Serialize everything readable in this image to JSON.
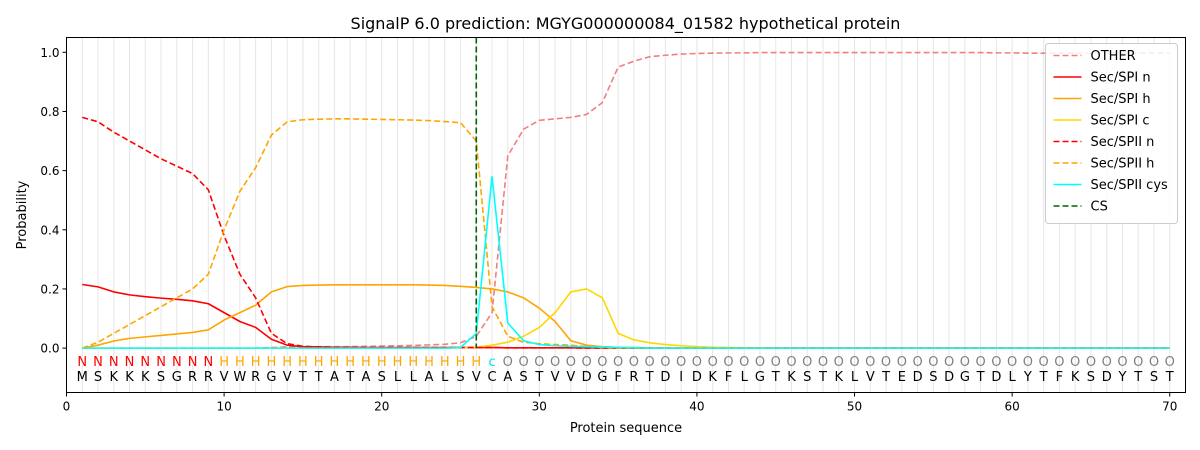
{
  "chart_data": {
    "type": "line",
    "title": "SignalP 6.0 prediction: MGYG000000084_01582 hypothetical protein",
    "xlabel": "Protein sequence",
    "ylabel": "Probability",
    "xlim": [
      0,
      71
    ],
    "ylim": [
      -0.15,
      1.05
    ],
    "xticks": [
      0,
      10,
      20,
      30,
      40,
      50,
      60,
      70
    ],
    "yticks": [
      0.0,
      0.2,
      0.4,
      0.6,
      0.8,
      1.0
    ],
    "vertical_gridlines": "at every residue position (light gray)",
    "legend_position": "top-right",
    "sequence": [
      "M",
      "S",
      "K",
      "K",
      "K",
      "S",
      "G",
      "R",
      "R",
      "V",
      "W",
      "R",
      "G",
      "V",
      "T",
      "T",
      "A",
      "T",
      "A",
      "S",
      "L",
      "L",
      "A",
      "L",
      "S",
      "V",
      "C",
      "A",
      "S",
      "T",
      "V",
      "V",
      "D",
      "G",
      "F",
      "R",
      "T",
      "D",
      "I",
      "D",
      "K",
      "F",
      "L",
      "G",
      "T",
      "K",
      "S",
      "T",
      "K",
      "L",
      "V",
      "T",
      "E",
      "D",
      "S",
      "D",
      "G",
      "T",
      "D",
      "L",
      "Y",
      "T",
      "F",
      "K",
      "S",
      "D",
      "Y",
      "T",
      "S",
      "T"
    ],
    "region_labels": [
      "N",
      "N",
      "N",
      "N",
      "N",
      "N",
      "N",
      "N",
      "N",
      "H",
      "H",
      "H",
      "H",
      "H",
      "H",
      "H",
      "H",
      "H",
      "H",
      "H",
      "H",
      "H",
      "H",
      "H",
      "H",
      "H",
      "c",
      "O",
      "O",
      "O",
      "O",
      "O",
      "O",
      "O",
      "O",
      "O",
      "O",
      "O",
      "O",
      "O",
      "O",
      "O",
      "O",
      "O",
      "O",
      "O",
      "O",
      "O",
      "O",
      "O",
      "O",
      "O",
      "O",
      "O",
      "O",
      "O",
      "O",
      "O",
      "O",
      "O",
      "O",
      "O",
      "O",
      "O",
      "O",
      "O",
      "O",
      "O",
      "O",
      "O"
    ],
    "region_colors": {
      "N": "#ff0000",
      "H": "#ffa500",
      "c": "#00e5e5",
      "O": "#808080"
    },
    "cleavage_site": 26,
    "series": [
      {
        "name": "OTHER",
        "color": "#f08080",
        "dash": "dashed",
        "values": [
          0.0,
          0.0,
          0.0,
          0.0,
          0.0,
          0.0,
          0.0,
          0.0,
          0.0,
          0.0,
          0.0,
          0.0,
          0.002,
          0.004,
          0.005,
          0.005,
          0.005,
          0.005,
          0.006,
          0.007,
          0.008,
          0.009,
          0.011,
          0.013,
          0.018,
          0.04,
          0.12,
          0.65,
          0.74,
          0.77,
          0.775,
          0.78,
          0.79,
          0.83,
          0.95,
          0.97,
          0.985,
          0.99,
          0.994,
          0.996,
          0.997,
          0.998,
          0.998,
          0.999,
          0.999,
          0.999,
          0.999,
          0.999,
          0.999,
          0.999,
          0.999,
          0.999,
          0.999,
          0.999,
          0.999,
          0.999,
          0.999,
          0.999,
          0.998,
          0.998,
          0.997,
          0.997,
          0.997,
          0.997,
          0.997,
          0.997,
          0.997,
          0.997,
          0.997,
          0.997
        ]
      },
      {
        "name": "Sec/SPI n",
        "color": "#ff0000",
        "dash": "solid",
        "values": [
          0.215,
          0.207,
          0.19,
          0.18,
          0.174,
          0.169,
          0.165,
          0.16,
          0.15,
          0.12,
          0.09,
          0.07,
          0.03,
          0.01,
          0.005,
          0.004,
          0.003,
          0.003,
          0.002,
          0.002,
          0.002,
          0.002,
          0.002,
          0.002,
          0.002,
          0.002,
          0.002,
          0.001,
          0.001,
          0.001,
          0.001,
          0.001,
          0.001,
          0.001,
          0.0,
          0.0,
          0.0,
          0.0,
          0.0,
          0.0,
          0.0,
          0.0,
          0.0,
          0.0,
          0.0,
          0.0,
          0.0,
          0.0,
          0.0,
          0.0,
          0.0,
          0.0,
          0.0,
          0.0,
          0.0,
          0.0,
          0.0,
          0.0,
          0.0,
          0.0,
          0.0,
          0.0,
          0.0,
          0.0,
          0.0,
          0.0,
          0.0,
          0.0,
          0.0,
          0.0
        ]
      },
      {
        "name": "Sec/SPI h",
        "color": "#ffa500",
        "dash": "solid",
        "values": [
          0.0,
          0.01,
          0.024,
          0.033,
          0.038,
          0.043,
          0.048,
          0.053,
          0.062,
          0.095,
          0.12,
          0.145,
          0.19,
          0.208,
          0.212,
          0.213,
          0.214,
          0.214,
          0.214,
          0.214,
          0.214,
          0.214,
          0.213,
          0.212,
          0.209,
          0.205,
          0.2,
          0.19,
          0.17,
          0.135,
          0.09,
          0.025,
          0.01,
          0.005,
          0.003,
          0.002,
          0.001,
          0.0,
          0.0,
          0.0,
          0.0,
          0.0,
          0.0,
          0.0,
          0.0,
          0.0,
          0.0,
          0.0,
          0.0,
          0.0,
          0.0,
          0.0,
          0.0,
          0.0,
          0.0,
          0.0,
          0.0,
          0.0,
          0.0,
          0.0,
          0.0,
          0.0,
          0.0,
          0.0,
          0.0,
          0.0,
          0.0,
          0.0,
          0.0,
          0.0
        ]
      },
      {
        "name": "Sec/SPI c",
        "color": "#ffd700",
        "dash": "solid",
        "values": [
          0.0,
          0.0,
          0.0,
          0.0,
          0.0,
          0.0,
          0.0,
          0.0,
          0.0,
          0.0,
          0.0,
          0.0,
          0.0,
          0.0,
          0.0,
          0.0,
          0.0,
          0.0,
          0.0,
          0.0,
          0.0,
          0.0,
          0.0,
          0.0,
          0.001,
          0.003,
          0.01,
          0.02,
          0.04,
          0.07,
          0.12,
          0.19,
          0.2,
          0.17,
          0.05,
          0.028,
          0.018,
          0.012,
          0.008,
          0.005,
          0.003,
          0.002,
          0.001,
          0.001,
          0.0,
          0.0,
          0.0,
          0.0,
          0.0,
          0.0,
          0.0,
          0.0,
          0.0,
          0.0,
          0.0,
          0.0,
          0.0,
          0.0,
          0.0,
          0.0,
          0.0,
          0.0,
          0.0,
          0.0,
          0.0,
          0.0,
          0.0,
          0.0,
          0.0,
          0.0
        ]
      },
      {
        "name": "Sec/SPII n",
        "color": "#ff0000",
        "dash": "dashed",
        "values": [
          0.78,
          0.765,
          0.73,
          0.7,
          0.67,
          0.64,
          0.615,
          0.59,
          0.535,
          0.38,
          0.25,
          0.17,
          0.05,
          0.015,
          0.006,
          0.004,
          0.003,
          0.003,
          0.002,
          0.002,
          0.002,
          0.002,
          0.002,
          0.002,
          0.002,
          0.002,
          0.002,
          0.001,
          0.001,
          0.001,
          0.001,
          0.001,
          0.0,
          0.0,
          0.0,
          0.0,
          0.0,
          0.0,
          0.0,
          0.0,
          0.0,
          0.0,
          0.0,
          0.0,
          0.0,
          0.0,
          0.0,
          0.0,
          0.0,
          0.0,
          0.0,
          0.0,
          0.0,
          0.0,
          0.0,
          0.0,
          0.0,
          0.0,
          0.0,
          0.0,
          0.0,
          0.0,
          0.0,
          0.0,
          0.0,
          0.0,
          0.0,
          0.0,
          0.0,
          0.0
        ]
      },
      {
        "name": "Sec/SPII h",
        "color": "#ffa500",
        "dash": "dashed",
        "values": [
          0.0,
          0.02,
          0.05,
          0.08,
          0.11,
          0.14,
          0.17,
          0.2,
          0.25,
          0.4,
          0.53,
          0.61,
          0.72,
          0.765,
          0.772,
          0.774,
          0.775,
          0.775,
          0.774,
          0.773,
          0.772,
          0.771,
          0.769,
          0.766,
          0.762,
          0.7,
          0.14,
          0.04,
          0.02,
          0.015,
          0.012,
          0.01,
          0.005,
          0.003,
          0.0,
          0.0,
          0.0,
          0.0,
          0.0,
          0.0,
          0.0,
          0.0,
          0.0,
          0.0,
          0.0,
          0.0,
          0.0,
          0.0,
          0.0,
          0.0,
          0.0,
          0.0,
          0.0,
          0.0,
          0.0,
          0.0,
          0.0,
          0.0,
          0.0,
          0.0,
          0.0,
          0.0,
          0.0,
          0.0,
          0.0,
          0.0,
          0.0,
          0.0,
          0.0,
          0.0
        ]
      },
      {
        "name": "Sec/SPII cys",
        "color": "#00ffff",
        "dash": "solid",
        "values": [
          0.0,
          0.0,
          0.0,
          0.0,
          0.0,
          0.0,
          0.0,
          0.0,
          0.0,
          0.0,
          0.0,
          0.0,
          0.0,
          0.0,
          0.0,
          0.0,
          0.0,
          0.0,
          0.0,
          0.0,
          0.0,
          0.0,
          0.0,
          0.0,
          0.002,
          0.05,
          0.58,
          0.085,
          0.025,
          0.012,
          0.008,
          0.006,
          0.005,
          0.004,
          0.002,
          0.001,
          0.0,
          0.0,
          0.0,
          0.0,
          0.0,
          0.0,
          0.0,
          0.0,
          0.0,
          0.0,
          0.0,
          0.0,
          0.0,
          0.0,
          0.0,
          0.0,
          0.0,
          0.0,
          0.0,
          0.0,
          0.0,
          0.0,
          0.0,
          0.0,
          0.0,
          0.0,
          0.0,
          0.0,
          0.0,
          0.0,
          0.0,
          0.0,
          0.0,
          0.0
        ]
      },
      {
        "name": "CS",
        "color": "#006400",
        "dash": "dashed",
        "kind": "vertical-line"
      }
    ]
  }
}
